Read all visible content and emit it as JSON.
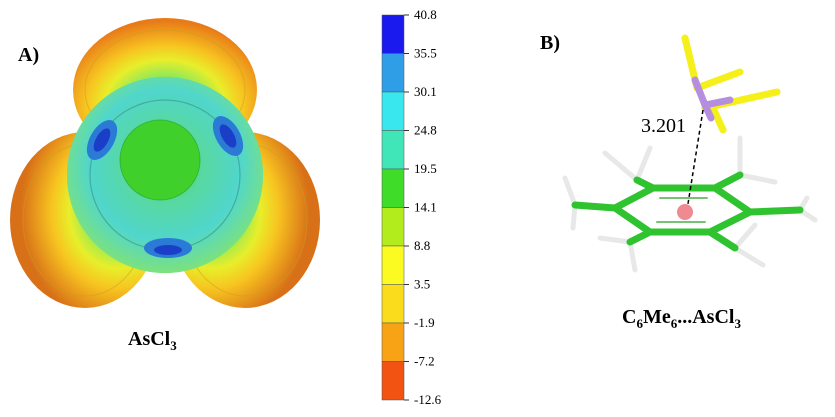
{
  "panel_a": {
    "label": "A)",
    "caption": {
      "main": "AsCl",
      "sub": "3"
    }
  },
  "panel_b": {
    "label": "B)",
    "distance_label": "3.201",
    "caption": {
      "p1": "C",
      "s1": "6",
      "p2": "Me",
      "s2": "6",
      "p3": "...AsCl",
      "s3": "3"
    }
  },
  "color_scale": {
    "ticks": [
      "40.8",
      "35.5",
      "30.1",
      "24.8",
      "19.5",
      "14.1",
      "8.8",
      "3.5",
      "-1.9",
      "-7.2",
      "-12.6"
    ],
    "colors": [
      "#1a1aee",
      "#2f9ee6",
      "#38e8ee",
      "#40e6b8",
      "#3fdc2a",
      "#b2ec1c",
      "#fbfb22",
      "#fbdc1c",
      "#f8a216",
      "#f25212"
    ]
  },
  "colors": {
    "carbon": "#2fc42f",
    "hydrogen": "#e8e8e8",
    "arsenic": "#b58ee0",
    "chlorine": "#f5ef1a",
    "centroid": "#f08a92"
  }
}
